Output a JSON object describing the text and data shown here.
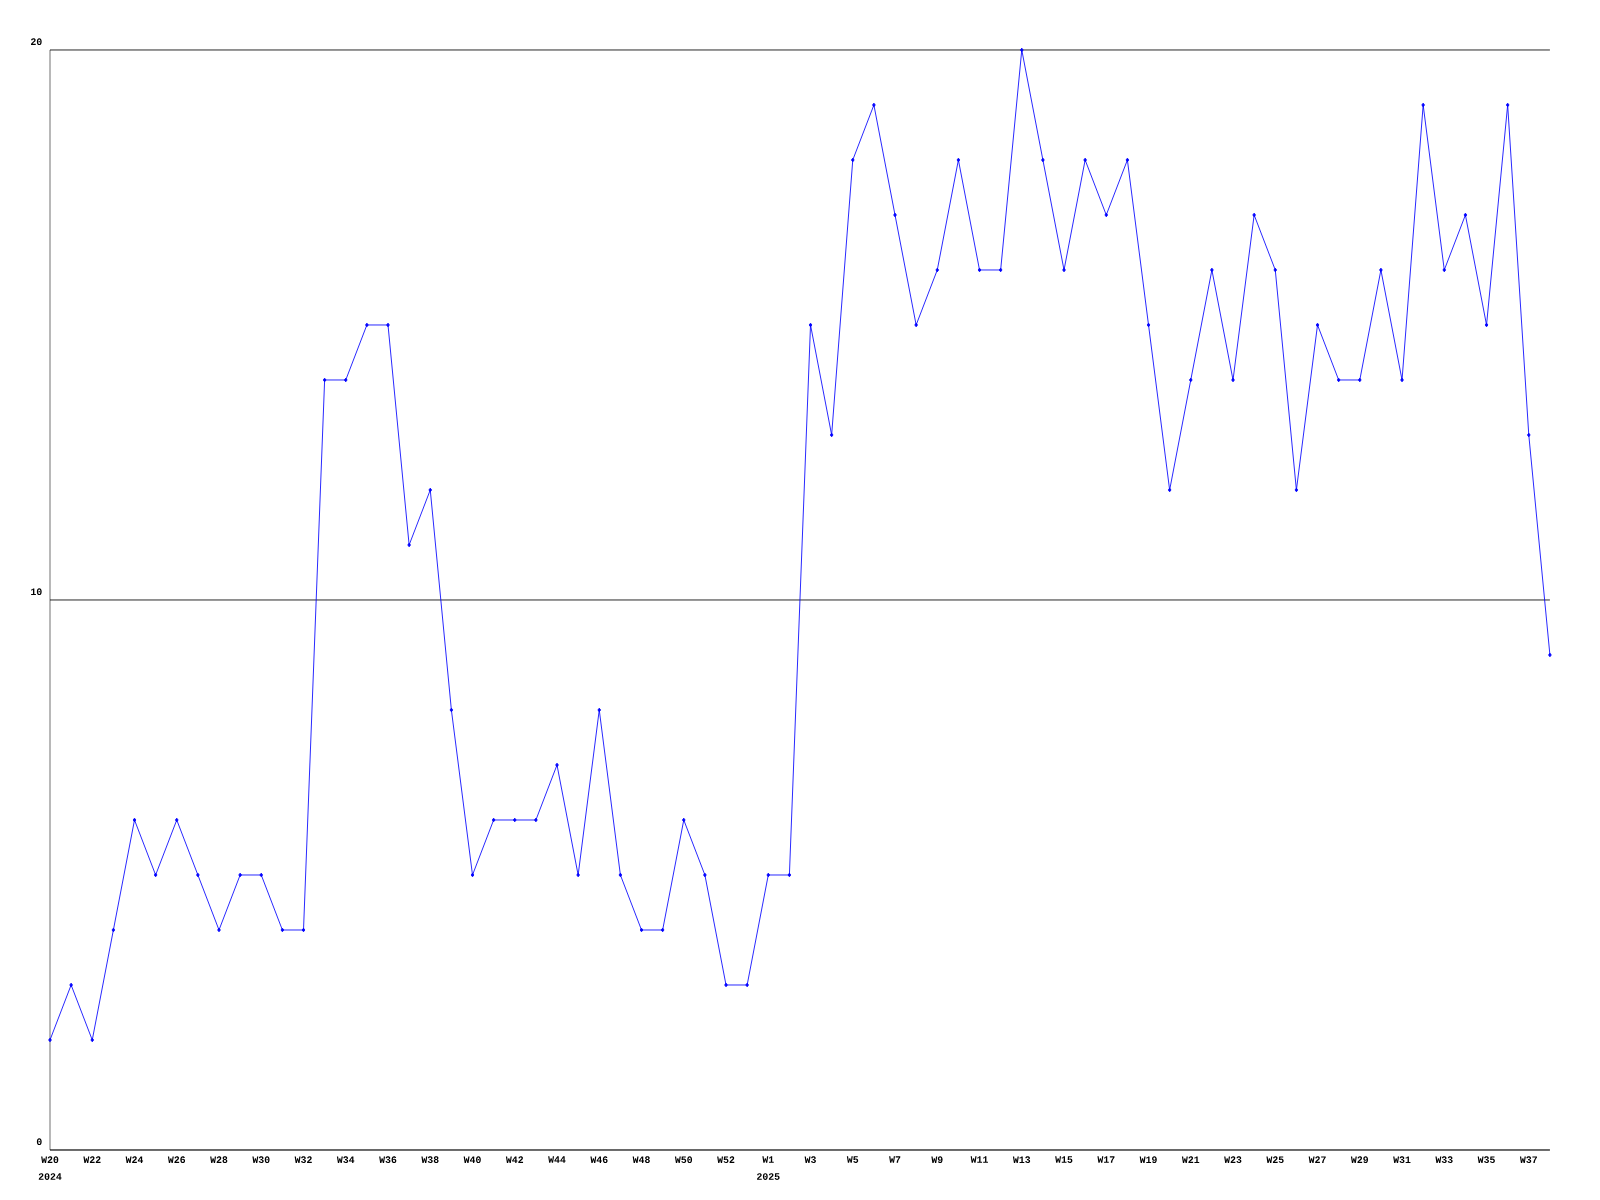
{
  "chart_data": {
    "type": "line",
    "categories": [
      "W20",
      null,
      "W22",
      null,
      "W24",
      null,
      "W26",
      null,
      "W28",
      null,
      "W30",
      null,
      "W32",
      null,
      "W34",
      null,
      "W36",
      null,
      "W38",
      null,
      "W40",
      null,
      "W42",
      null,
      "W44",
      null,
      "W46",
      null,
      "W48",
      null,
      "W50",
      null,
      "W52",
      null,
      "W1",
      null,
      "W3",
      null,
      "W5",
      null,
      "W7",
      null,
      "W9",
      null,
      "W11",
      null,
      "W13",
      null,
      "W15",
      null,
      "W17",
      null,
      "W19",
      null,
      "W21",
      null,
      "W23",
      null,
      "W25",
      null,
      "W27",
      null,
      "W29",
      null,
      "W31",
      null,
      "W33",
      null,
      "W35",
      null,
      "W37",
      null
    ],
    "values": [
      2,
      3,
      2,
      4,
      6,
      5,
      6,
      5,
      4,
      5,
      5,
      4,
      4,
      14,
      14,
      15,
      15,
      11,
      12,
      8,
      5,
      6,
      6,
      6,
      7,
      5,
      8,
      5,
      4,
      4,
      6,
      5,
      3,
      3,
      5,
      5,
      15,
      13,
      18,
      19,
      17,
      15,
      16,
      18,
      16,
      16,
      20,
      18,
      16,
      18,
      17,
      18,
      15,
      12,
      14,
      16,
      14,
      17,
      16,
      12,
      15,
      14,
      14,
      16,
      14,
      19,
      16,
      17,
      15,
      19,
      13,
      9
    ],
    "color": "#0000ff",
    "ylim": [
      0,
      20
    ],
    "yticks": [
      0,
      10,
      20
    ],
    "grid": "y",
    "marker": "diamond",
    "line_style": "solid",
    "annotations": [
      "2024",
      "2025"
    ]
  }
}
